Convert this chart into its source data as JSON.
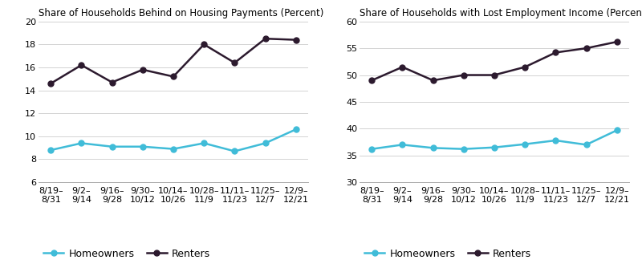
{
  "x_labels": [
    "8/19–\n8/31",
    "9/2–\n9/14",
    "9/16–\n9/28",
    "9/30–\n10/12",
    "10/14–\n10/26",
    "10/28–\n11/9",
    "11/11–\n11/23",
    "11/25–\n12/7",
    "12/9–\n12/21"
  ],
  "left_title": "Share of Households Behind on Housing Payments (Percent)",
  "right_title": "Share of Households with Lost Employment Income (Percent)",
  "left_homeowners": [
    8.8,
    9.4,
    9.1,
    9.1,
    8.9,
    9.4,
    8.7,
    9.4,
    10.6
  ],
  "left_renters": [
    14.6,
    16.2,
    14.7,
    15.8,
    15.2,
    18.0,
    16.4,
    18.5,
    18.4
  ],
  "right_homeowners": [
    36.2,
    37.0,
    36.4,
    36.2,
    36.5,
    37.1,
    37.8,
    37.0,
    39.7
  ],
  "right_renters": [
    49.0,
    51.5,
    49.0,
    50.0,
    50.0,
    51.5,
    54.2,
    55.0,
    56.2
  ],
  "left_ylim": [
    6,
    20
  ],
  "left_yticks": [
    6,
    8,
    10,
    12,
    14,
    16,
    18,
    20
  ],
  "right_ylim": [
    30,
    60
  ],
  "right_yticks": [
    30,
    35,
    40,
    45,
    50,
    55,
    60
  ],
  "homeowner_color": "#40BCD8",
  "renter_color": "#2C1A2E",
  "background_color": "#FFFFFF",
  "legend_labels": [
    "Homeowners",
    "Renters"
  ],
  "marker_size": 5,
  "line_width": 1.8,
  "tick_fontsize": 8,
  "title_fontsize": 8.5,
  "legend_fontsize": 9
}
